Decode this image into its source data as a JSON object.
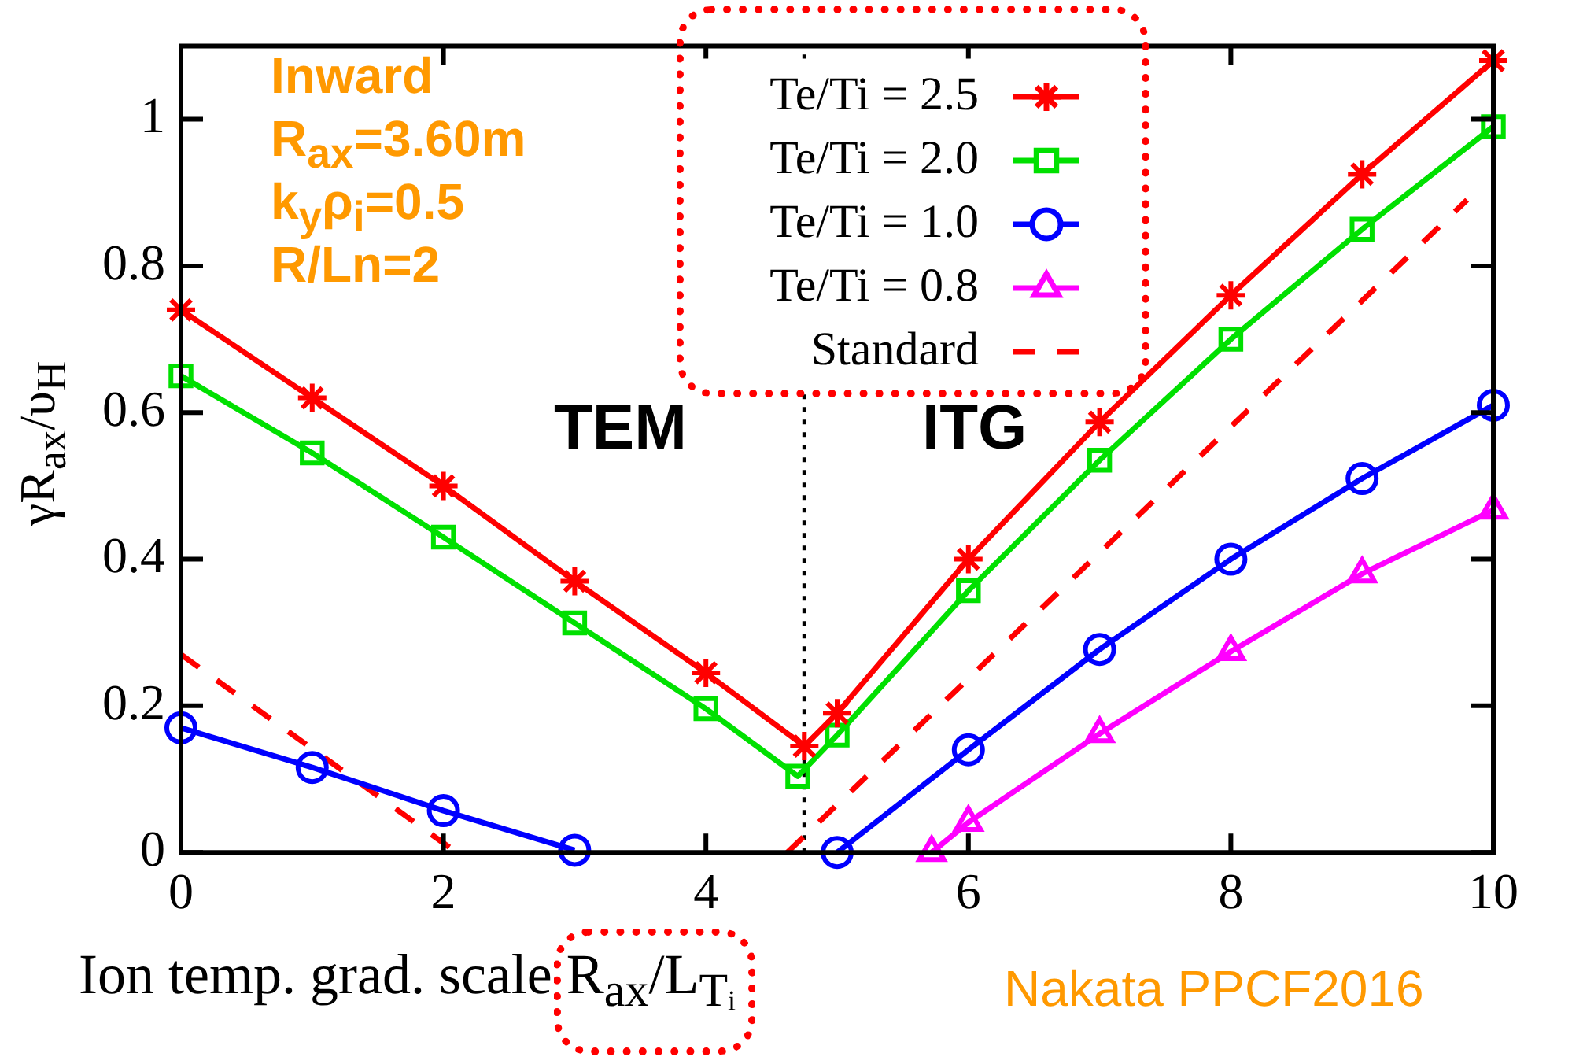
{
  "chart_data": {
    "type": "line",
    "xlabel": "Ion temp. grad. scale R$_{ax}$/L$_{Tᵢ}$",
    "ylabel": "γR$_{ax}$/υ$_{H}$",
    "xlim": [
      0,
      10
    ],
    "xticks": [
      0,
      2,
      4,
      6,
      8,
      10
    ],
    "ylim": [
      0,
      1.1
    ],
    "yticks": [
      0,
      0.2,
      0.4,
      0.6,
      0.8,
      1
    ],
    "grid": false,
    "legend": "top",
    "series": [
      {
        "name": "Te/Ti = 2.5",
        "color": "#ff0000",
        "marker": "cross",
        "x": [
          0,
          1,
          2,
          3,
          4,
          4.75,
          5,
          6,
          7,
          8,
          9,
          10
        ],
        "values": [
          0.74,
          0.62,
          0.5,
          0.37,
          0.245,
          0.145,
          0.19,
          0.4,
          0.587,
          0.76,
          0.925,
          1.08
        ]
      },
      {
        "name": "Te/Ti = 2.0",
        "color": "#00e000",
        "marker": "square",
        "x": [
          0,
          1,
          2,
          3,
          4,
          4.7,
          5,
          6,
          7,
          8,
          9,
          10
        ],
        "values": [
          0.65,
          0.545,
          0.43,
          0.313,
          0.196,
          0.104,
          0.16,
          0.357,
          0.535,
          0.7,
          0.85,
          0.99
        ]
      },
      {
        "name": "Te/Ti = 1.0",
        "color": "#0000ff",
        "marker": "circle",
        "x": [
          0,
          1,
          2,
          3,
          4,
          5,
          6,
          7,
          8,
          9,
          10
        ],
        "values": [
          0.17,
          0.116,
          0.057,
          0.003,
          null,
          0,
          0.14,
          0.277,
          0.4,
          0.51,
          0.61
        ]
      },
      {
        "name": "Te/Ti = 0.8",
        "color": "#ff00ff",
        "marker": "triangle",
        "x": [
          5.72,
          6,
          7,
          8,
          9,
          10
        ],
        "values": [
          0,
          0.041,
          0.162,
          0.274,
          0.38,
          0.467
        ]
      },
      {
        "name": "Standard",
        "color": "#ff0000",
        "marker": "none",
        "line_style": "dashed",
        "x": [
          0,
          2.1,
          3,
          4.62,
          9.8
        ],
        "values": [
          0.27,
          0,
          null,
          0,
          0.89
        ]
      }
    ],
    "ref_lines": [
      {
        "axis": "x",
        "value": 4.75,
        "color": "#000000",
        "line_style": "dotted"
      }
    ],
    "annotations": [
      "Inward",
      "R$_{ax}$=3.60m",
      "k$_{y}$ρ$_{i}$=0.5",
      "R/Ln=2",
      "TEM",
      "ITG",
      "Nakata PPCF2016"
    ]
  }
}
